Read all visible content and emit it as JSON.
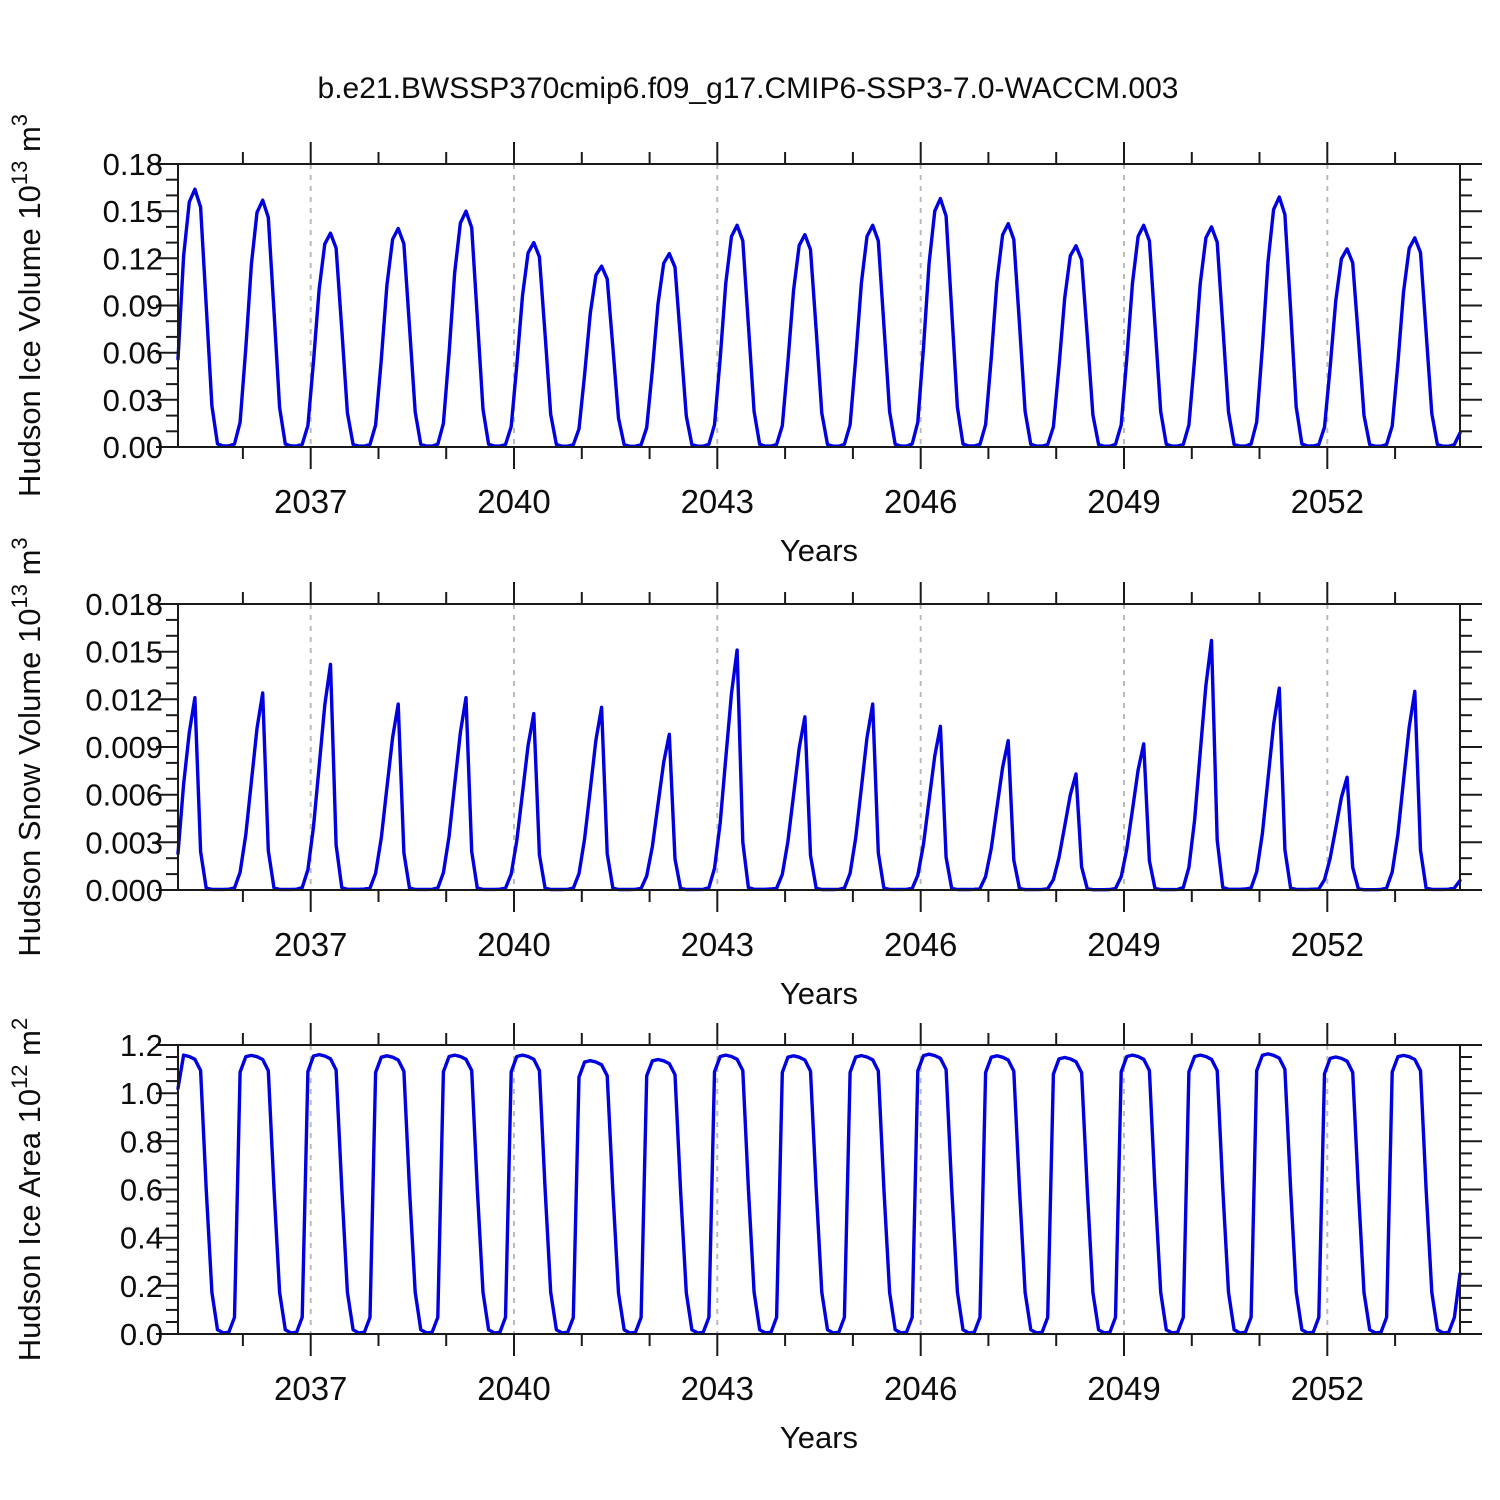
{
  "title": "b.e21.BWSSP370cmip6.f09_g17.CMIP6-SSP3-7.0-WACCM.003",
  "style": {
    "line_color": "#0000e0",
    "grid_color": "#bbbbbb",
    "axis_color": "#1a1a1a",
    "background": "#ffffff"
  },
  "x_axis": {
    "label": "Years",
    "major_tick_labels": [
      "2037",
      "2040",
      "2043",
      "2046",
      "2049",
      "2052"
    ],
    "major_tick_years": [
      2037,
      2040,
      2043,
      2046,
      2049,
      2052
    ],
    "minor_step_years": 1,
    "min": 2035.042,
    "max": 2053.958
  },
  "chart_data": [
    {
      "type": "line",
      "id": "hudson-ice-volume",
      "ylabel_text": "Hudson Ice Volume 10^13 m^3",
      "ylabel_parts": [
        [
          "Hudson Ice Volume 10",
          false
        ],
        [
          "13",
          true
        ],
        [
          " m",
          false
        ],
        [
          "3",
          true
        ]
      ],
      "ylim": [
        0,
        0.18
      ],
      "ytick_step": 0.03,
      "yminor_step": 0.01,
      "ytick_labels": [
        "0.00",
        "0.03",
        "0.06",
        "0.09",
        "0.12",
        "0.15",
        "0.18"
      ],
      "grid": "vertical-dashed",
      "legend": "none",
      "start_year": 2035,
      "years": [
        2035,
        2036,
        2037,
        2038,
        2039,
        2040,
        2041,
        2042,
        2043,
        2044,
        2045,
        2046,
        2047,
        2048,
        2049,
        2050,
        2051,
        2052,
        2053
      ],
      "annual_peaks": [
        0.164,
        0.157,
        0.136,
        0.139,
        0.15,
        0.13,
        0.115,
        0.123,
        0.141,
        0.135,
        0.141,
        0.158,
        0.142,
        0.128,
        0.141,
        0.14,
        0.159,
        0.126,
        0.133
      ],
      "monthly_profile": [
        0.4,
        0.74,
        0.95,
        1.0,
        0.93,
        0.55,
        0.16,
        0.012,
        0.004,
        0.004,
        0.012,
        0.1
      ],
      "first_value": 0.056,
      "last_value": 0.009
    },
    {
      "type": "line",
      "id": "hudson-snow-volume",
      "ylabel_text": "Hudson Snow Volume 10^13 m^3",
      "ylabel_parts": [
        [
          "Hudson Snow Volume 10",
          false
        ],
        [
          "13",
          true
        ],
        [
          " m",
          false
        ],
        [
          "3",
          true
        ]
      ],
      "ylim": [
        0,
        0.018
      ],
      "ytick_step": 0.003,
      "yminor_step": 0.001,
      "ytick_labels": [
        "0.000",
        "0.003",
        "0.006",
        "0.009",
        "0.012",
        "0.015",
        "0.018"
      ],
      "grid": "vertical-dashed",
      "legend": "none",
      "start_year": 2035,
      "years": [
        2035,
        2036,
        2037,
        2038,
        2039,
        2040,
        2041,
        2042,
        2043,
        2044,
        2045,
        2046,
        2047,
        2048,
        2049,
        2050,
        2051,
        2052,
        2053
      ],
      "annual_peaks": [
        0.0121,
        0.0124,
        0.0142,
        0.0117,
        0.0121,
        0.0111,
        0.0115,
        0.0098,
        0.0151,
        0.0109,
        0.0117,
        0.0103,
        0.0094,
        0.0073,
        0.0092,
        0.0157,
        0.0127,
        0.0071,
        0.0125
      ],
      "monthly_profile": [
        0.28,
        0.55,
        0.82,
        1.0,
        0.2,
        0.01,
        0.003,
        0.003,
        0.003,
        0.004,
        0.01,
        0.09
      ],
      "first_value": 0.0023,
      "last_value": 0.0006
    },
    {
      "type": "line",
      "id": "hudson-ice-area",
      "ylabel_text": "Hudson Ice Area 10^12 m^2",
      "ylabel_parts": [
        [
          "Hudson Ice Area 10",
          false
        ],
        [
          "12",
          true
        ],
        [
          " m",
          false
        ],
        [
          "2",
          true
        ]
      ],
      "ylim": [
        0,
        1.2
      ],
      "ytick_step": 0.2,
      "yminor_step": 0.05,
      "ytick_labels": [
        "0.0",
        "0.2",
        "0.4",
        "0.6",
        "0.8",
        "1.0",
        "1.2"
      ],
      "grid": "vertical-dashed",
      "legend": "none",
      "start_year": 2035,
      "years": [
        2035,
        2036,
        2037,
        2038,
        2039,
        2040,
        2041,
        2042,
        2043,
        2044,
        2045,
        2046,
        2047,
        2048,
        2049,
        2050,
        2051,
        2052,
        2053
      ],
      "annual_peaks": [
        1.158,
        1.157,
        1.16,
        1.155,
        1.158,
        1.158,
        1.135,
        1.14,
        1.158,
        1.155,
        1.156,
        1.162,
        1.155,
        1.148,
        1.158,
        1.158,
        1.163,
        1.15,
        1.157
      ],
      "monthly_profile": [
        0.995,
        1.0,
        0.995,
        0.985,
        0.945,
        0.52,
        0.15,
        0.015,
        0.004,
        0.006,
        0.06,
        0.94
      ],
      "first_value": 1.02,
      "last_value": 0.25
    }
  ]
}
